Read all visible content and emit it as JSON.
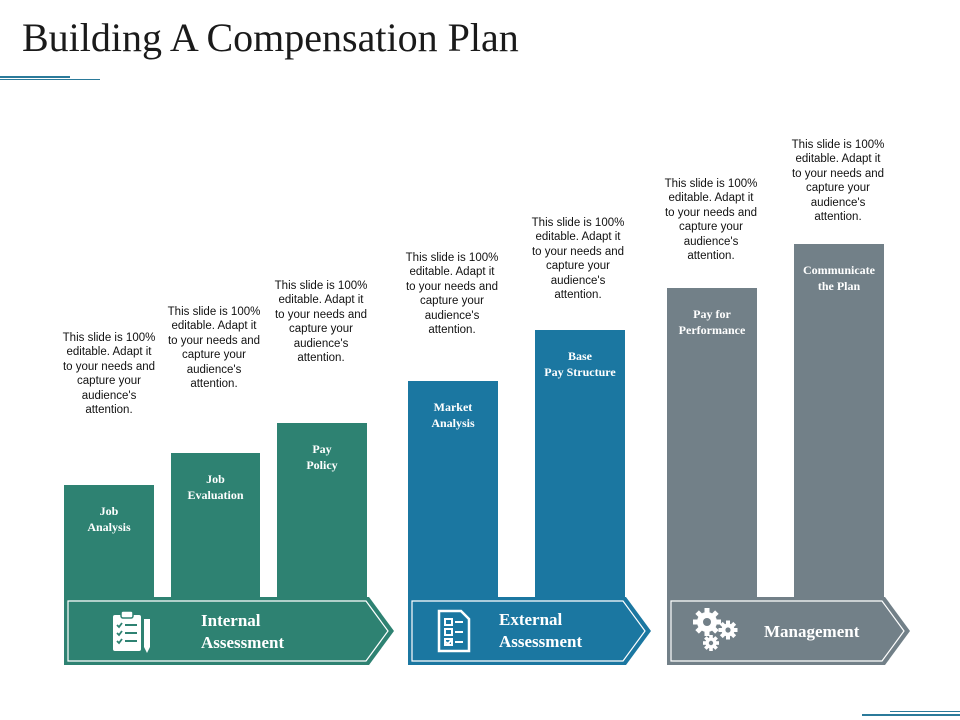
{
  "title": "Building A Compensation Plan",
  "description": "This slide is 100% editable. Adapt it to your needs and capture your audience's attention.",
  "colors": {
    "internal": "#2e8272",
    "external": "#1b77a1",
    "management": "#728088"
  },
  "groups": [
    {
      "label": "Internal\nAssessment",
      "icon": "clipboard-checklist-icon",
      "bars": [
        {
          "label": "Job\nAnalysis"
        },
        {
          "label": "Job\nEvaluation"
        },
        {
          "label": "Pay\nPolicy"
        }
      ]
    },
    {
      "label": "External\nAssessment",
      "icon": "checklist-document-icon",
      "bars": [
        {
          "label": "Market\nAnalysis"
        },
        {
          "label": "Base\nPay Structure"
        }
      ]
    },
    {
      "label": "Management",
      "icon": "gears-icon",
      "bars": [
        {
          "label": "Pay for\nPerformance"
        },
        {
          "label": "Communicate\nthe Plan"
        }
      ]
    }
  ]
}
